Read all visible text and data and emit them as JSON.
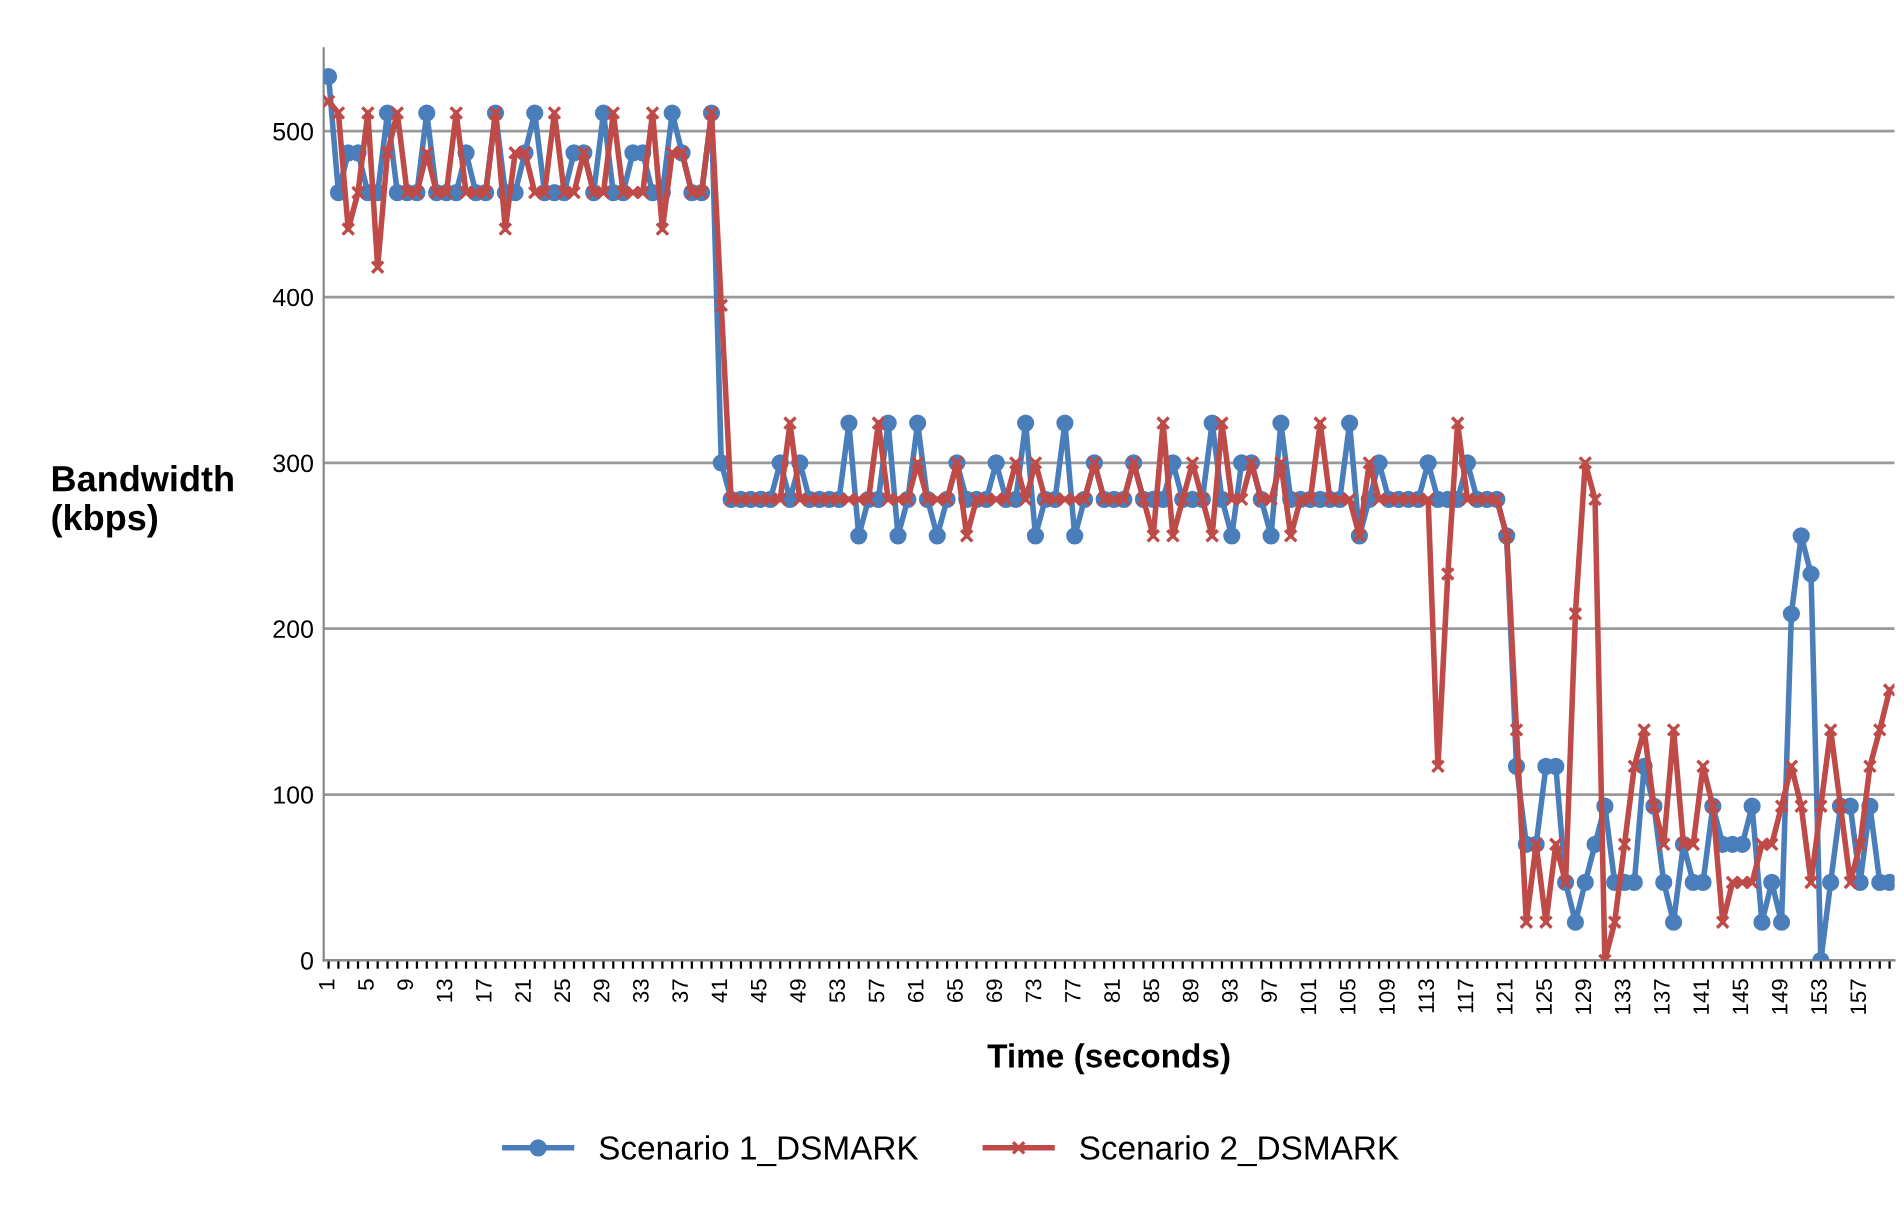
{
  "chart_data": {
    "type": "line",
    "xlabel": "Time (seconds)",
    "ylabel": "Bandwidth\n(kbps)",
    "categories": [
      "1",
      null,
      null,
      null,
      "5",
      null,
      null,
      null,
      "9",
      null,
      null,
      null,
      "13",
      null,
      null,
      null,
      "17",
      null,
      null,
      null,
      "21",
      null,
      null,
      null,
      "25",
      null,
      null,
      null,
      "29",
      null,
      null,
      null,
      "33",
      null,
      null,
      null,
      "37",
      null,
      null,
      null,
      "41",
      null,
      null,
      null,
      "45",
      null,
      null,
      null,
      "49",
      null,
      null,
      null,
      "53",
      null,
      null,
      null,
      "57",
      null,
      null,
      null,
      "61",
      null,
      null,
      null,
      "65",
      null,
      null,
      null,
      "69",
      null,
      null,
      null,
      "73",
      null,
      null,
      null,
      "77",
      null,
      null,
      null,
      "81",
      null,
      null,
      null,
      "85",
      null,
      null,
      null,
      "89",
      null,
      null,
      null,
      "93",
      null,
      null,
      null,
      "97",
      null,
      null,
      null,
      "101",
      null,
      null,
      null,
      "105",
      null,
      null,
      null,
      "109",
      null,
      null,
      null,
      "113",
      null,
      null,
      null,
      "117",
      null,
      null,
      null,
      "121",
      null,
      null,
      null,
      "125",
      null,
      null,
      null,
      "129",
      null,
      null,
      null,
      "133",
      null,
      null,
      null,
      "137",
      null,
      null,
      null,
      "141",
      null,
      null,
      null,
      "145",
      null,
      null,
      null,
      "149",
      null,
      null,
      null,
      "153",
      null,
      null,
      null,
      "157",
      null,
      null,
      null
    ],
    "series": [
      {
        "name": "Scenario 1_DSMARK",
        "color": "#4a7ebb",
        "marker": "circle",
        "values": [
          533,
          463,
          487,
          487,
          463,
          463,
          511,
          463,
          463,
          463,
          511,
          463,
          463,
          463,
          487,
          463,
          463,
          511,
          463,
          463,
          487,
          511,
          463,
          463,
          463,
          487,
          487,
          463,
          511,
          463,
          463,
          487,
          487,
          463,
          463,
          511,
          487,
          463,
          463,
          511,
          300,
          278,
          278,
          278,
          278,
          278,
          300,
          278,
          300,
          278,
          278,
          278,
          278,
          324,
          256,
          278,
          278,
          324,
          256,
          278,
          324,
          278,
          256,
          278,
          300,
          278,
          278,
          278,
          300,
          278,
          278,
          324,
          256,
          278,
          278,
          324,
          256,
          278,
          300,
          278,
          278,
          278,
          300,
          278,
          278,
          278,
          300,
          278,
          278,
          278,
          324,
          278,
          256,
          300,
          300,
          278,
          256,
          324,
          278,
          278,
          278,
          278,
          278,
          278,
          324,
          256,
          278,
          300,
          278,
          278,
          278,
          278,
          300,
          278,
          278,
          278,
          300,
          278,
          278,
          278,
          256,
          117,
          70,
          70,
          117,
          117,
          47,
          23,
          47,
          70,
          93,
          47,
          47,
          47,
          117,
          93,
          47,
          23,
          70,
          47,
          47,
          93,
          70,
          70,
          70,
          93,
          23,
          47,
          23,
          209,
          256,
          233,
          0,
          47,
          93,
          93,
          47,
          93,
          47,
          47
        ]
      },
      {
        "name": "Scenario 2_DSMARK",
        "color": "#be4b48",
        "marker": "cross",
        "values": [
          518,
          511,
          441,
          463,
          511,
          418,
          487,
          511,
          463,
          463,
          487,
          463,
          463,
          511,
          463,
          463,
          463,
          511,
          441,
          487,
          487,
          463,
          463,
          511,
          463,
          463,
          487,
          463,
          463,
          511,
          463,
          463,
          463,
          511,
          441,
          487,
          487,
          463,
          463,
          511,
          395,
          278,
          278,
          278,
          278,
          278,
          278,
          324,
          278,
          278,
          278,
          278,
          278,
          278,
          278,
          278,
          324,
          278,
          278,
          278,
          300,
          278,
          278,
          278,
          300,
          256,
          278,
          278,
          278,
          278,
          300,
          278,
          300,
          278,
          278,
          278,
          278,
          278,
          300,
          278,
          278,
          278,
          300,
          278,
          256,
          324,
          256,
          278,
          300,
          278,
          256,
          324,
          278,
          278,
          300,
          278,
          278,
          300,
          256,
          278,
          278,
          324,
          278,
          278,
          278,
          256,
          300,
          278,
          278,
          278,
          278,
          278,
          278,
          117,
          233,
          324,
          278,
          278,
          278,
          278,
          256,
          139,
          23,
          70,
          23,
          70,
          47,
          209,
          300,
          278,
          0,
          23,
          70,
          117,
          139,
          93,
          70,
          139,
          70,
          70,
          117,
          93,
          23,
          47,
          47,
          47,
          70,
          70,
          93,
          117,
          93,
          47,
          93,
          139,
          93,
          47,
          70,
          117,
          139,
          163
        ]
      }
    ],
    "ylim": [
      0,
      550
    ],
    "yticks": [
      0,
      100,
      200,
      300,
      400,
      500
    ],
    "grid": "y",
    "legend": "bottom",
    "line_style": "solid"
  }
}
